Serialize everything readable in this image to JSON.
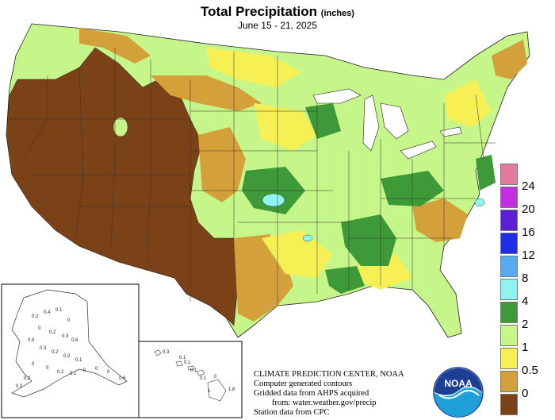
{
  "title": "Total Precipitation",
  "title_units": "(inches)",
  "subtitle": "June 15 - 21, 2025",
  "legend": {
    "entries": [
      {
        "label": "24",
        "color": "#e27a9c"
      },
      {
        "label": "20",
        "color": "#c32fe0"
      },
      {
        "label": "16",
        "color": "#5a20d8"
      },
      {
        "label": "12",
        "color": "#1f2ee6"
      },
      {
        "label": "8",
        "color": "#56aaf0"
      },
      {
        "label": "4",
        "color": "#8ef4f0"
      },
      {
        "label": "2",
        "color": "#3e9a38"
      },
      {
        "label": "1",
        "color": "#c6f58a"
      },
      {
        "label": "0.5",
        "color": "#f6f055"
      },
      {
        "label": "0",
        "color": "#d4a03a"
      },
      {
        "label": "",
        "color": "#7a4216"
      }
    ]
  },
  "credits": {
    "line1": "CLIMATE PREDICTION CENTER, NOAA",
    "line2": "Computer generated contours",
    "line3": "Gridded data from AHPS acquired",
    "line4": "from: water.weather.gov/precip",
    "line5": "Station data from CPC"
  },
  "logo_text": "NOAA",
  "alaska_values": [
    "0.2",
    "0.4",
    "0.1",
    "0",
    "0",
    "0.2",
    "0.3",
    "0.6",
    "0.5",
    "0.3",
    "0.2",
    "0.2",
    "0.1",
    "0",
    "0",
    "0.2",
    "0.1",
    "0",
    "0",
    "0",
    "0.6",
    "0.2",
    "0.3"
  ],
  "hawaii_values": [
    "0.3",
    "0.1",
    "0.1",
    "0.1",
    "1.8",
    "0",
    "0.1",
    "1"
  ],
  "colors": {
    "dry": "#7a4216",
    "light": "#d4a03a",
    "moderate": "#f6f055",
    "wet": "#c6f58a",
    "very_wet": "#3e9a38",
    "extreme": "#8ef4f0"
  }
}
